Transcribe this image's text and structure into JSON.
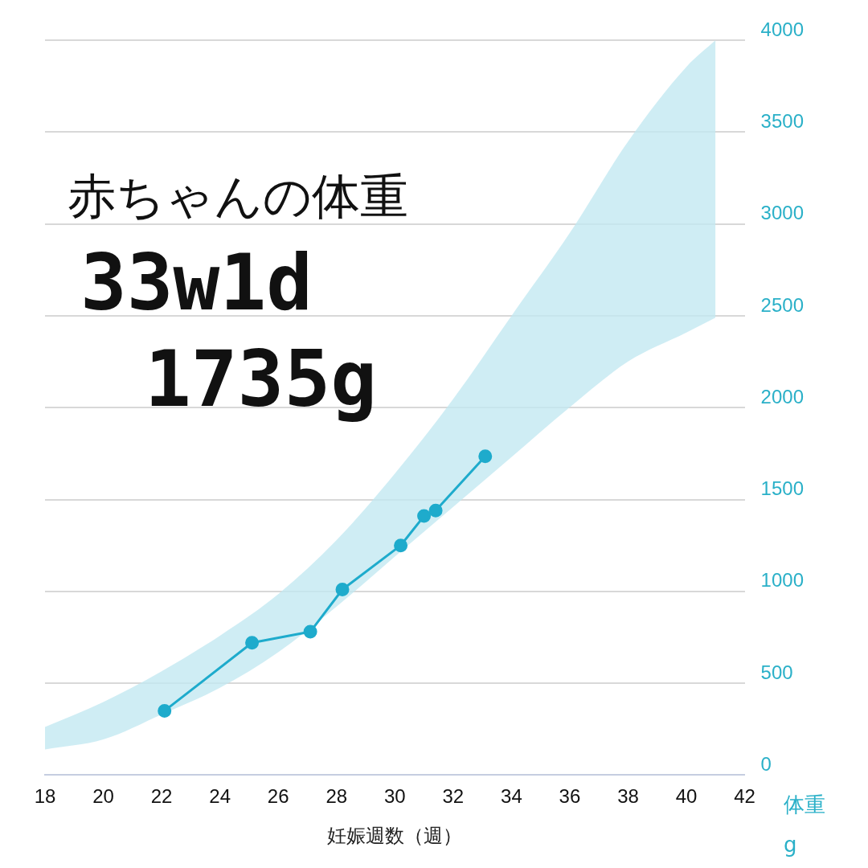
{
  "chart_data": {
    "type": "line",
    "title": "赤ちゃんの体重",
    "xlabel": "妊娠週数（週）",
    "ylabel": "体重\ng",
    "annotations": [
      "33w1d",
      "1735g"
    ],
    "xlim": [
      18,
      42
    ],
    "xticks": [
      18,
      20,
      22,
      24,
      26,
      28,
      30,
      32,
      34,
      36,
      38,
      40,
      42
    ],
    "ylim": [
      0,
      4000
    ],
    "yticks": [
      0,
      500,
      1000,
      1500,
      2000,
      2500,
      3000,
      3500,
      4000
    ],
    "grid": "y",
    "marker": "circle",
    "legend": false,
    "series": [
      {
        "type": "area",
        "color": "#c3e8f1",
        "x": [
          18,
          20,
          22,
          24,
          26,
          28,
          30,
          32,
          34,
          36,
          38,
          40,
          41
        ],
        "values": [
          null,
          null,
          null,
          null,
          null,
          null,
          null,
          null,
          null,
          null,
          null,
          null,
          null
        ],
        "lower": [
          140,
          194,
          330,
          475,
          669,
          917,
          1189,
          1460,
          1731,
          2002,
          2251,
          2409,
          2490
        ],
        "upper": [
          262,
          398,
          565,
          759,
          985,
          1279,
          1641,
          2047,
          2500,
          2951,
          3449,
          3855,
          4000
        ]
      },
      {
        "color": "#1eabcc",
        "x": [
          22.1,
          25.1,
          27.1,
          28.2,
          30.2,
          31.0,
          31.4,
          33.1
        ],
        "values": [
          350,
          720,
          780,
          1010,
          1250,
          1410,
          1440,
          1735
        ]
      }
    ]
  }
}
